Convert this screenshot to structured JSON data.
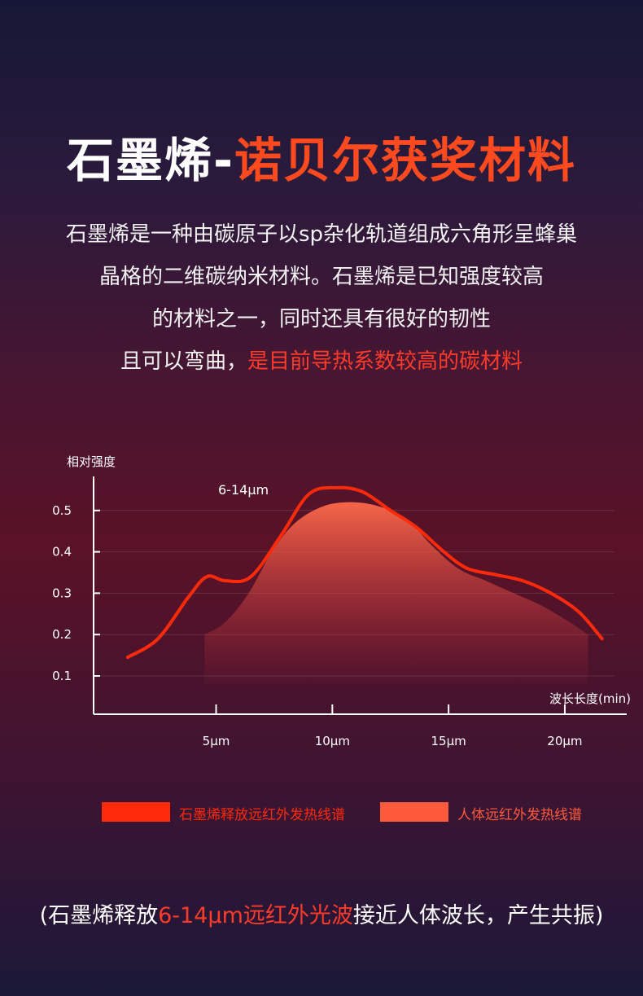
{
  "header": {
    "title_main": "石墨烯-",
    "title_highlight": "诺贝尔获奖材料"
  },
  "description": {
    "line1": "石墨烯是一种由碳原子以sp杂化轨道组成六角形呈蜂巢",
    "line2": "晶格的二维碳纳米材料。石墨烯是已知强度较高",
    "line3": "的材料之一，同时还具有很好的韧性",
    "line4_plain": "且可以弯曲，",
    "line4_highlight": "是目前导热系数较高的碳材料"
  },
  "chart_data": {
    "type": "line",
    "ylabel": "相对强度",
    "xlabel": "波长长度(min)",
    "y_ticks": [
      "0.5",
      "0.4",
      "0.3",
      "0.2",
      "0.1"
    ],
    "x_ticks": [
      "5μm",
      "10μm",
      "15μm",
      "20μm"
    ],
    "annotation": "6-14μm",
    "series": [
      {
        "name": "石墨烯释放远红外发热线谱",
        "style": "line",
        "color": "#ff2a0a",
        "points": [
          [
            1.2,
            0.145
          ],
          [
            2.5,
            0.19
          ],
          [
            3.8,
            0.29
          ],
          [
            4.6,
            0.34
          ],
          [
            5.4,
            0.33
          ],
          [
            6.5,
            0.34
          ],
          [
            7.8,
            0.44
          ],
          [
            9.0,
            0.54
          ],
          [
            10.2,
            0.555
          ],
          [
            11.3,
            0.545
          ],
          [
            12.5,
            0.5
          ],
          [
            13.6,
            0.46
          ],
          [
            14.8,
            0.4
          ],
          [
            15.8,
            0.36
          ],
          [
            17.0,
            0.345
          ],
          [
            18.2,
            0.33
          ],
          [
            19.4,
            0.3
          ],
          [
            20.6,
            0.255
          ],
          [
            21.6,
            0.19
          ]
        ]
      },
      {
        "name": "人体远红外发热线谱",
        "style": "area",
        "color": "#ff6a4a",
        "points": [
          [
            4.5,
            0.2
          ],
          [
            5.4,
            0.23
          ],
          [
            6.4,
            0.3
          ],
          [
            7.4,
            0.4
          ],
          [
            8.4,
            0.47
          ],
          [
            9.6,
            0.51
          ],
          [
            10.8,
            0.52
          ],
          [
            12.0,
            0.51
          ],
          [
            13.2,
            0.48
          ],
          [
            14.2,
            0.42
          ],
          [
            15.4,
            0.36
          ],
          [
            16.6,
            0.33
          ],
          [
            17.8,
            0.3
          ],
          [
            19.0,
            0.27
          ],
          [
            20.2,
            0.23
          ],
          [
            21.0,
            0.2
          ]
        ]
      }
    ]
  },
  "legend": {
    "item1_label": "石墨烯释放远红外发热线谱",
    "item1_color": "#ff2a0a",
    "item2_label": "人体远红外发热线谱",
    "item2_color": "#ff5a3c"
  },
  "footer": {
    "part1": "(石墨烯释放",
    "part2_highlight": "6-14μm远红外光波",
    "part3": "接近人体波长，产生共振)"
  }
}
